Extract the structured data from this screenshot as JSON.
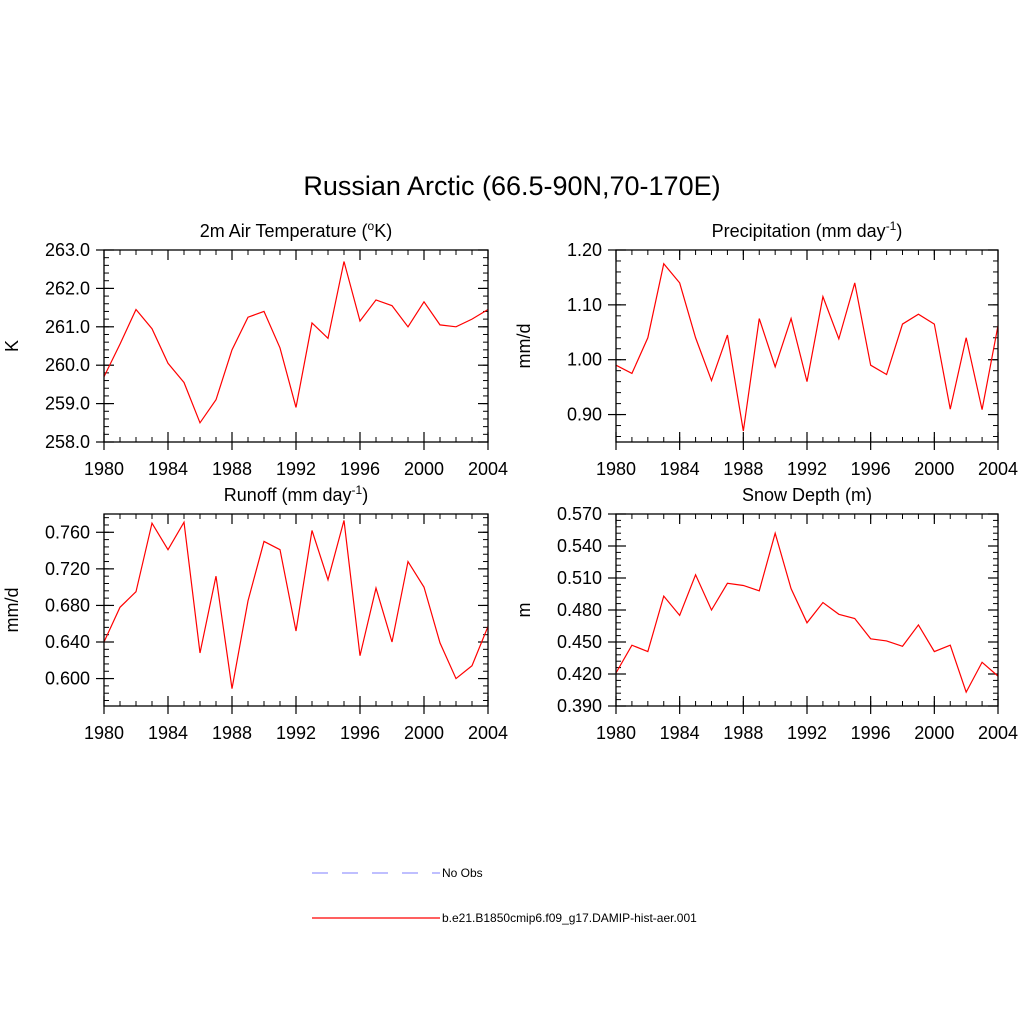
{
  "title": "Russian Arctic (66.5-90N,70-170E)",
  "years": [
    1980,
    1981,
    1982,
    1983,
    1984,
    1985,
    1986,
    1987,
    1988,
    1989,
    1990,
    1991,
    1992,
    1993,
    1994,
    1995,
    1996,
    1997,
    1998,
    1999,
    2000,
    2001,
    2002,
    2003,
    2004
  ],
  "line_color": "#ff0000",
  "obs_color": "#9999ff",
  "legend": {
    "obs_label": "No Obs",
    "model_label": "b.e21.B1850cmip6.f09_g17.DAMIP-hist-aer.001"
  },
  "chart_data": [
    {
      "type": "line",
      "title": "2m Air Temperature (",
      "title_sup": "o",
      "title_tail": "K)",
      "ylabel": "K",
      "xlim": [
        1980,
        2004
      ],
      "ylim": [
        258.0,
        263.0
      ],
      "xticks": [
        "1980",
        "1984",
        "1988",
        "1992",
        "1996",
        "2000",
        "2004"
      ],
      "yticks": [
        "258.0",
        "259.0",
        "260.0",
        "261.0",
        "262.0",
        "263.0"
      ],
      "series": [
        {
          "values": [
            259.7,
            260.55,
            261.45,
            260.95,
            260.05,
            259.55,
            258.5,
            259.1,
            260.4,
            261.25,
            261.4,
            260.45,
            258.9,
            261.1,
            260.7,
            262.7,
            261.15,
            261.7,
            261.55,
            261.0,
            261.65,
            261.05,
            261.0,
            261.2,
            261.45
          ]
        }
      ]
    },
    {
      "type": "line",
      "title": "Precipitation (mm day",
      "title_sup": "-1",
      "title_tail": ")",
      "ylabel": "mm/d",
      "xlim": [
        1980,
        2004
      ],
      "ylim": [
        0.85,
        1.2
      ],
      "xticks": [
        "1980",
        "1984",
        "1988",
        "1992",
        "1996",
        "2000",
        "2004"
      ],
      "yticks": [
        "0.90",
        "1.00",
        "1.10",
        "1.20"
      ],
      "series": [
        {
          "values": [
            0.99,
            0.975,
            1.04,
            1.175,
            1.14,
            1.04,
            0.962,
            1.045,
            0.87,
            1.075,
            0.987,
            1.075,
            0.96,
            1.115,
            1.038,
            1.14,
            0.99,
            0.973,
            1.065,
            1.083,
            1.065,
            0.91,
            1.04,
            0.909,
            1.062
          ]
        }
      ]
    },
    {
      "type": "line",
      "title": "Runoff (mm day",
      "title_sup": "-1",
      "title_tail": ")",
      "ylabel": "mm/d",
      "xlim": [
        1980,
        2004
      ],
      "ylim": [
        0.57,
        0.78
      ],
      "xticks": [
        "1980",
        "1984",
        "1988",
        "1992",
        "1996",
        "2000",
        "2004"
      ],
      "yticks": [
        "0.600",
        "0.640",
        "0.680",
        "0.720",
        "0.760"
      ],
      "series": [
        {
          "values": [
            0.64,
            0.678,
            0.695,
            0.77,
            0.741,
            0.771,
            0.628,
            0.712,
            0.589,
            0.685,
            0.75,
            0.741,
            0.652,
            0.762,
            0.708,
            0.773,
            0.625,
            0.699,
            0.64,
            0.728,
            0.7,
            0.639,
            0.6,
            0.614,
            0.657
          ]
        }
      ]
    },
    {
      "type": "line",
      "title": "Snow Depth (m)",
      "title_sup": "",
      "title_tail": "",
      "ylabel": "m",
      "xlim": [
        1980,
        2004
      ],
      "ylim": [
        0.39,
        0.57
      ],
      "xticks": [
        "1980",
        "1984",
        "1988",
        "1992",
        "1996",
        "2000",
        "2004"
      ],
      "yticks": [
        "0.390",
        "0.420",
        "0.450",
        "0.480",
        "0.510",
        "0.540",
        "0.570"
      ],
      "series": [
        {
          "values": [
            0.421,
            0.447,
            0.441,
            0.493,
            0.475,
            0.513,
            0.48,
            0.505,
            0.503,
            0.498,
            0.552,
            0.5,
            0.468,
            0.487,
            0.476,
            0.472,
            0.453,
            0.451,
            0.446,
            0.466,
            0.441,
            0.447,
            0.403,
            0.431,
            0.418
          ]
        }
      ]
    }
  ]
}
